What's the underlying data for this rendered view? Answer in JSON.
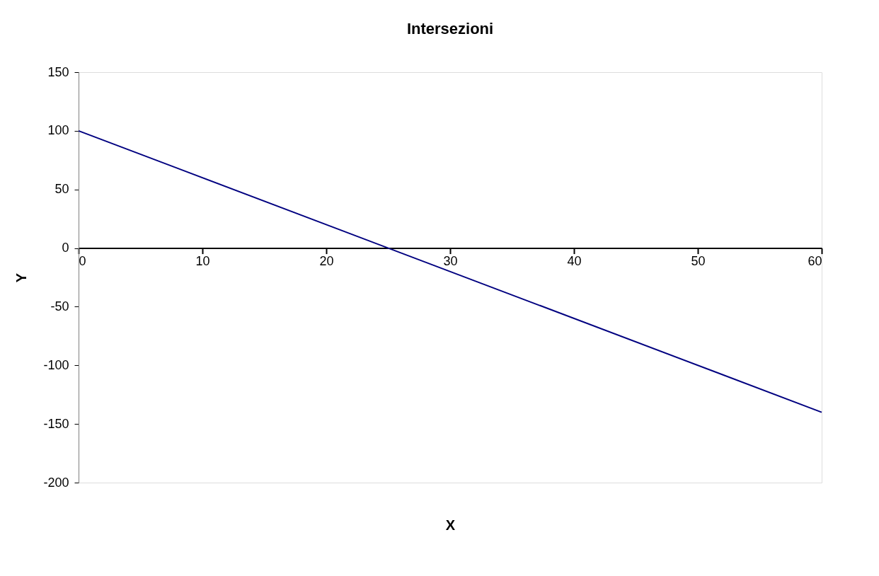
{
  "chart_data": {
    "type": "line",
    "title": "Intersezioni",
    "xlabel": "X",
    "ylabel": "Y",
    "x": [
      0,
      60
    ],
    "series": [
      {
        "color": "#000080",
        "values": [
          100,
          -140
        ]
      }
    ],
    "xlim": [
      0,
      60
    ],
    "xticks": [
      0,
      10,
      20,
      30,
      40,
      50,
      60
    ],
    "ylim": [
      -200,
      150
    ],
    "yticks": [
      -200,
      -150,
      -100,
      -50,
      0,
      50,
      100,
      150
    ],
    "grid": false,
    "legend": false,
    "marker": "none",
    "line_style": "solid"
  }
}
